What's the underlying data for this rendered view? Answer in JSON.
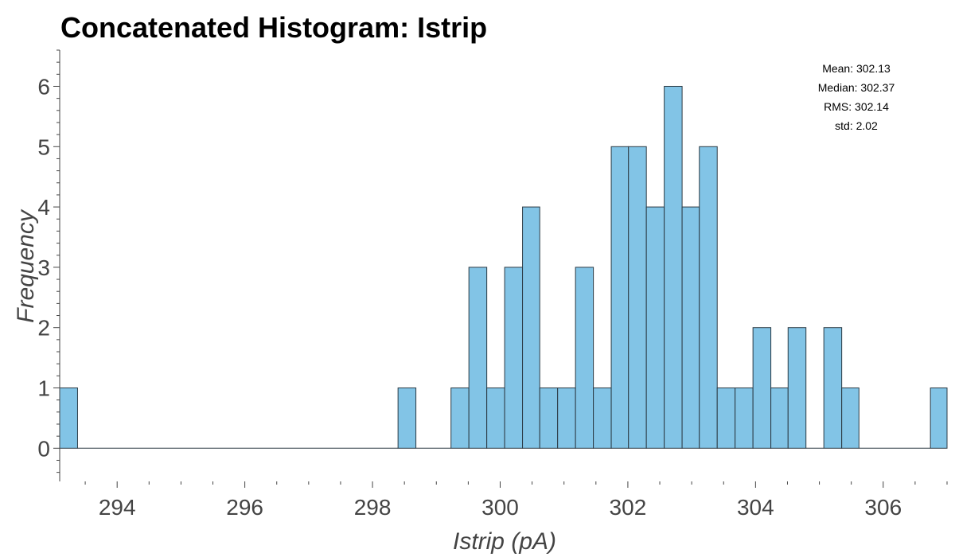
{
  "chart_data": {
    "type": "bar",
    "title": "Concatenated Histogram: Istrip",
    "xlabel": "Istrip (pA)",
    "ylabel": "Frequency",
    "xlim": [
      293.1,
      307.0
    ],
    "ylim": [
      -0.55,
      6.6
    ],
    "xticks": [
      "294",
      "296",
      "298",
      "300",
      "302",
      "304",
      "306"
    ],
    "yticks": [
      "0",
      "1",
      "2",
      "3",
      "4",
      "5",
      "6"
    ],
    "grid": false,
    "bin_width": 0.278,
    "bins": [
      {
        "x0": 293.1,
        "x1": 293.38,
        "count": 1
      },
      {
        "x0": 293.38,
        "x1": 298.4,
        "count": 0
      },
      {
        "x0": 298.4,
        "x1": 298.68,
        "count": 1
      },
      {
        "x0": 298.68,
        "x1": 299.23,
        "count": 0
      },
      {
        "x0": 299.23,
        "x1": 299.51,
        "count": 1
      },
      {
        "x0": 299.51,
        "x1": 299.79,
        "count": 3
      },
      {
        "x0": 299.79,
        "x1": 300.07,
        "count": 1
      },
      {
        "x0": 300.07,
        "x1": 300.35,
        "count": 3
      },
      {
        "x0": 300.35,
        "x1": 300.62,
        "count": 4
      },
      {
        "x0": 300.62,
        "x1": 300.9,
        "count": 1
      },
      {
        "x0": 300.9,
        "x1": 301.18,
        "count": 1
      },
      {
        "x0": 301.18,
        "x1": 301.46,
        "count": 3
      },
      {
        "x0": 301.46,
        "x1": 301.74,
        "count": 1
      },
      {
        "x0": 301.74,
        "x1": 302.01,
        "count": 5
      },
      {
        "x0": 302.01,
        "x1": 302.29,
        "count": 5
      },
      {
        "x0": 302.29,
        "x1": 302.57,
        "count": 4
      },
      {
        "x0": 302.57,
        "x1": 302.85,
        "count": 6
      },
      {
        "x0": 302.85,
        "x1": 303.12,
        "count": 4
      },
      {
        "x0": 303.12,
        "x1": 303.4,
        "count": 5
      },
      {
        "x0": 303.4,
        "x1": 303.68,
        "count": 1
      },
      {
        "x0": 303.68,
        "x1": 303.96,
        "count": 1
      },
      {
        "x0": 303.96,
        "x1": 304.24,
        "count": 2
      },
      {
        "x0": 304.24,
        "x1": 304.51,
        "count": 1
      },
      {
        "x0": 304.51,
        "x1": 304.79,
        "count": 2
      },
      {
        "x0": 304.79,
        "x1": 305.07,
        "count": 0
      },
      {
        "x0": 305.07,
        "x1": 305.35,
        "count": 2
      },
      {
        "x0": 305.35,
        "x1": 305.62,
        "count": 1
      },
      {
        "x0": 305.62,
        "x1": 306.74,
        "count": 0
      },
      {
        "x0": 306.74,
        "x1": 307.0,
        "count": 1
      }
    ],
    "stats": [
      "Mean: 302.13",
      "Median: 302.37",
      "RMS: 302.14",
      "std: 2.02"
    ],
    "stats_placement": "top-right",
    "colors": {
      "bar_fill": "#82c4e6",
      "bar_stroke": "#2b3a44",
      "text": "#444444"
    }
  }
}
